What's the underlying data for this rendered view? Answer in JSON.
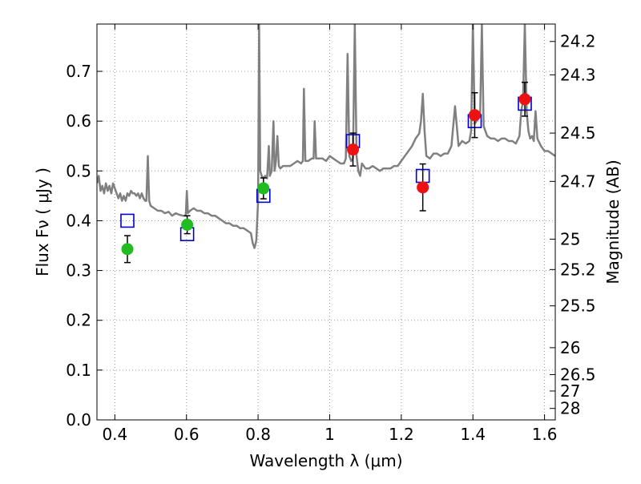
{
  "chart_data": {
    "type": "scatter",
    "xlabel": "Wavelength  λ (μm)",
    "ylabel": "Flux  Fν  ( μJy )",
    "ylabel_right": "Magnitude (AB)",
    "xlim": [
      0.35,
      1.63
    ],
    "ylim": [
      0.0,
      0.795
    ],
    "x_ticks": [
      0.4,
      0.6,
      0.8,
      1.0,
      1.2,
      1.4,
      1.6
    ],
    "x_tick_labels": [
      "0.4",
      "0.6",
      "0.8",
      "1",
      "1.2",
      "1.4",
      "1.6"
    ],
    "y_ticks": [
      0.0,
      0.1,
      0.2,
      0.3,
      0.4,
      0.5,
      0.6,
      0.7
    ],
    "y_tick_labels": [
      "0.0",
      "0.1",
      "0.2",
      "0.3",
      "0.4",
      "0.5",
      "0.6",
      "0.7"
    ],
    "right_axis_ticks": [
      {
        "label": "24.2",
        "flux": 0.76
      },
      {
        "label": "24.3",
        "flux": 0.693
      },
      {
        "label": "24.5",
        "flux": 0.576
      },
      {
        "label": "24.7",
        "flux": 0.479
      },
      {
        "label": "25",
        "flux": 0.363
      },
      {
        "label": "25.2",
        "flux": 0.302
      },
      {
        "label": "25.5",
        "flux": 0.229
      },
      {
        "label": "26",
        "flux": 0.145
      },
      {
        "label": "26.5",
        "flux": 0.091
      },
      {
        "label": "27",
        "flux": 0.058
      },
      {
        "label": "28",
        "flux": 0.023
      }
    ],
    "grid": true,
    "colors": {
      "spectrum": "#808080",
      "model": "#0000cc",
      "green": "#22bb22",
      "red": "#ee1111",
      "errorbar": "#000000",
      "grid": "#999999"
    },
    "spectrum": [
      [
        0.35,
        0.475
      ],
      [
        0.355,
        0.49
      ],
      [
        0.36,
        0.46
      ],
      [
        0.365,
        0.47
      ],
      [
        0.37,
        0.455
      ],
      [
        0.375,
        0.475
      ],
      [
        0.38,
        0.46
      ],
      [
        0.385,
        0.47
      ],
      [
        0.39,
        0.455
      ],
      [
        0.395,
        0.475
      ],
      [
        0.4,
        0.465
      ],
      [
        0.405,
        0.455
      ],
      [
        0.41,
        0.445
      ],
      [
        0.415,
        0.455
      ],
      [
        0.42,
        0.44
      ],
      [
        0.425,
        0.45
      ],
      [
        0.43,
        0.44
      ],
      [
        0.435,
        0.455
      ],
      [
        0.44,
        0.45
      ],
      [
        0.445,
        0.46
      ],
      [
        0.45,
        0.455
      ],
      [
        0.455,
        0.455
      ],
      [
        0.46,
        0.45
      ],
      [
        0.465,
        0.455
      ],
      [
        0.47,
        0.445
      ],
      [
        0.475,
        0.455
      ],
      [
        0.48,
        0.445
      ],
      [
        0.485,
        0.44
      ],
      [
        0.488,
        0.44
      ],
      [
        0.492,
        0.53
      ],
      [
        0.496,
        0.44
      ],
      [
        0.5,
        0.43
      ],
      [
        0.51,
        0.425
      ],
      [
        0.52,
        0.42
      ],
      [
        0.53,
        0.42
      ],
      [
        0.54,
        0.415
      ],
      [
        0.55,
        0.418
      ],
      [
        0.56,
        0.41
      ],
      [
        0.57,
        0.415
      ],
      [
        0.58,
        0.412
      ],
      [
        0.59,
        0.41
      ],
      [
        0.598,
        0.41
      ],
      [
        0.601,
        0.46
      ],
      [
        0.604,
        0.415
      ],
      [
        0.61,
        0.42
      ],
      [
        0.62,
        0.425
      ],
      [
        0.63,
        0.42
      ],
      [
        0.64,
        0.42
      ],
      [
        0.65,
        0.415
      ],
      [
        0.66,
        0.415
      ],
      [
        0.67,
        0.41
      ],
      [
        0.68,
        0.41
      ],
      [
        0.69,
        0.405
      ],
      [
        0.7,
        0.4
      ],
      [
        0.71,
        0.395
      ],
      [
        0.72,
        0.395
      ],
      [
        0.73,
        0.39
      ],
      [
        0.74,
        0.39
      ],
      [
        0.75,
        0.385
      ],
      [
        0.76,
        0.385
      ],
      [
        0.77,
        0.38
      ],
      [
        0.78,
        0.375
      ],
      [
        0.785,
        0.355
      ],
      [
        0.79,
        0.345
      ],
      [
        0.795,
        0.36
      ],
      [
        0.8,
        0.44
      ],
      [
        0.803,
        0.795
      ],
      [
        0.806,
        0.5
      ],
      [
        0.81,
        0.49
      ],
      [
        0.815,
        0.485
      ],
      [
        0.82,
        0.49
      ],
      [
        0.825,
        0.485
      ],
      [
        0.83,
        0.55
      ],
      [
        0.833,
        0.49
      ],
      [
        0.838,
        0.5
      ],
      [
        0.843,
        0.6
      ],
      [
        0.846,
        0.5
      ],
      [
        0.85,
        0.52
      ],
      [
        0.854,
        0.57
      ],
      [
        0.858,
        0.51
      ],
      [
        0.862,
        0.505
      ],
      [
        0.87,
        0.51
      ],
      [
        0.88,
        0.51
      ],
      [
        0.89,
        0.51
      ],
      [
        0.9,
        0.515
      ],
      [
        0.91,
        0.52
      ],
      [
        0.92,
        0.515
      ],
      [
        0.925,
        0.52
      ],
      [
        0.928,
        0.665
      ],
      [
        0.932,
        0.52
      ],
      [
        0.94,
        0.52
      ],
      [
        0.95,
        0.525
      ],
      [
        0.955,
        0.525
      ],
      [
        0.958,
        0.6
      ],
      [
        0.962,
        0.525
      ],
      [
        0.97,
        0.525
      ],
      [
        0.98,
        0.525
      ],
      [
        0.99,
        0.52
      ],
      [
        1.0,
        0.53
      ],
      [
        1.01,
        0.525
      ],
      [
        1.02,
        0.52
      ],
      [
        1.03,
        0.515
      ],
      [
        1.04,
        0.515
      ],
      [
        1.045,
        0.525
      ],
      [
        1.05,
        0.735
      ],
      [
        1.055,
        0.53
      ],
      [
        1.06,
        0.52
      ],
      [
        1.065,
        0.525
      ],
      [
        1.07,
        0.795
      ],
      [
        1.075,
        0.53
      ],
      [
        1.08,
        0.5
      ],
      [
        1.085,
        0.49
      ],
      [
        1.09,
        0.515
      ],
      [
        1.1,
        0.505
      ],
      [
        1.11,
        0.505
      ],
      [
        1.12,
        0.51
      ],
      [
        1.13,
        0.505
      ],
      [
        1.14,
        0.5
      ],
      [
        1.15,
        0.505
      ],
      [
        1.16,
        0.505
      ],
      [
        1.17,
        0.505
      ],
      [
        1.18,
        0.51
      ],
      [
        1.19,
        0.51
      ],
      [
        1.2,
        0.52
      ],
      [
        1.21,
        0.53
      ],
      [
        1.22,
        0.54
      ],
      [
        1.23,
        0.55
      ],
      [
        1.24,
        0.565
      ],
      [
        1.25,
        0.575
      ],
      [
        1.255,
        0.6
      ],
      [
        1.26,
        0.655
      ],
      [
        1.265,
        0.58
      ],
      [
        1.27,
        0.53
      ],
      [
        1.28,
        0.525
      ],
      [
        1.29,
        0.535
      ],
      [
        1.3,
        0.535
      ],
      [
        1.31,
        0.53
      ],
      [
        1.32,
        0.535
      ],
      [
        1.33,
        0.535
      ],
      [
        1.34,
        0.55
      ],
      [
        1.35,
        0.63
      ],
      [
        1.36,
        0.55
      ],
      [
        1.37,
        0.56
      ],
      [
        1.38,
        0.555
      ],
      [
        1.39,
        0.56
      ],
      [
        1.395,
        0.58
      ],
      [
        1.4,
        0.795
      ],
      [
        1.405,
        0.595
      ],
      [
        1.41,
        0.6
      ],
      [
        1.42,
        0.61
      ],
      [
        1.425,
        0.795
      ],
      [
        1.43,
        0.59
      ],
      [
        1.44,
        0.57
      ],
      [
        1.45,
        0.565
      ],
      [
        1.46,
        0.565
      ],
      [
        1.47,
        0.56
      ],
      [
        1.48,
        0.565
      ],
      [
        1.49,
        0.565
      ],
      [
        1.5,
        0.56
      ],
      [
        1.51,
        0.56
      ],
      [
        1.52,
        0.555
      ],
      [
        1.53,
        0.57
      ],
      [
        1.535,
        0.62
      ],
      [
        1.54,
        0.64
      ],
      [
        1.545,
        0.795
      ],
      [
        1.55,
        0.62
      ],
      [
        1.555,
        0.58
      ],
      [
        1.56,
        0.565
      ],
      [
        1.565,
        0.57
      ],
      [
        1.57,
        0.56
      ],
      [
        1.575,
        0.62
      ],
      [
        1.58,
        0.565
      ],
      [
        1.59,
        0.55
      ],
      [
        1.6,
        0.54
      ],
      [
        1.61,
        0.54
      ],
      [
        1.62,
        0.535
      ],
      [
        1.63,
        0.53
      ]
    ],
    "model_photometry": [
      {
        "x": 0.435,
        "y": 0.4
      },
      {
        "x": 0.602,
        "y": 0.373
      },
      {
        "x": 0.815,
        "y": 0.45
      },
      {
        "x": 1.065,
        "y": 0.56
      },
      {
        "x": 1.26,
        "y": 0.49
      },
      {
        "x": 1.405,
        "y": 0.6
      },
      {
        "x": 1.545,
        "y": 0.635
      }
    ],
    "observed_photometry": [
      {
        "x": 0.435,
        "y": 0.343,
        "err": 0.027,
        "color": "green"
      },
      {
        "x": 0.602,
        "y": 0.392,
        "err": 0.018,
        "color": "green"
      },
      {
        "x": 0.815,
        "y": 0.465,
        "err": 0.021,
        "color": "green"
      },
      {
        "x": 1.065,
        "y": 0.543,
        "err": 0.033,
        "color": "red"
      },
      {
        "x": 1.26,
        "y": 0.467,
        "err": 0.047,
        "color": "red"
      },
      {
        "x": 1.405,
        "y": 0.612,
        "err": 0.045,
        "color": "red"
      },
      {
        "x": 1.545,
        "y": 0.644,
        "err": 0.034,
        "color": "red"
      }
    ]
  }
}
